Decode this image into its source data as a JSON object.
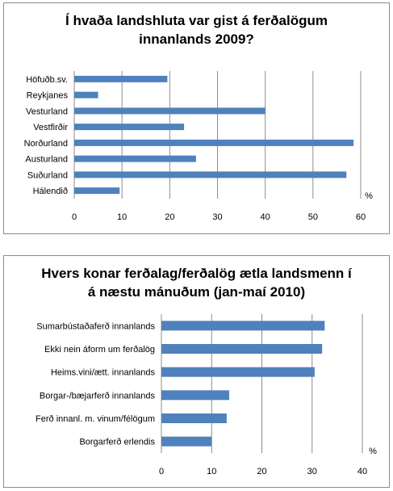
{
  "chart_data": [
    {
      "type": "bar",
      "orientation": "horizontal",
      "title_lines": [
        "Í hvaða landshluta var gist á ferðalögum",
        "innanlands 2009?"
      ],
      "categories": [
        "Höfuðb.sv.",
        "Reykjanes",
        "Vesturland",
        "Vestfirðir",
        "Norðurland",
        "Austurland",
        "Suðurland",
        "Hálendið"
      ],
      "values": [
        19.5,
        5,
        40,
        23,
        58.5,
        25.5,
        57,
        9.5
      ],
      "unit_label": "%",
      "xlim": [
        0,
        60
      ],
      "xticks": [
        0,
        10,
        20,
        30,
        40,
        50,
        60
      ],
      "grid": true,
      "bar_color": "#4f81bd"
    },
    {
      "type": "bar",
      "orientation": "horizontal",
      "title_lines": [
        "Hvers konar ferðalag/ferðalög ætla landsmenn í",
        "á næstu mánuðum (jan-maí 2010)"
      ],
      "categories": [
        "Sumarbústaðaferð innanlands",
        "Ekki nein áform um ferðalög",
        "Heims.vini/ætt. innanlands",
        "Borgar-/bæjarferð innanlands",
        "Ferð innanl. m. vinum/félögum",
        "Borgarferð erlendis"
      ],
      "values": [
        32.5,
        32,
        30.5,
        13.5,
        13,
        10
      ],
      "unit_label": "%",
      "xlim": [
        0,
        40
      ],
      "xticks": [
        0,
        10,
        20,
        30,
        40
      ],
      "grid": true,
      "bar_color": "#4f81bd"
    }
  ]
}
